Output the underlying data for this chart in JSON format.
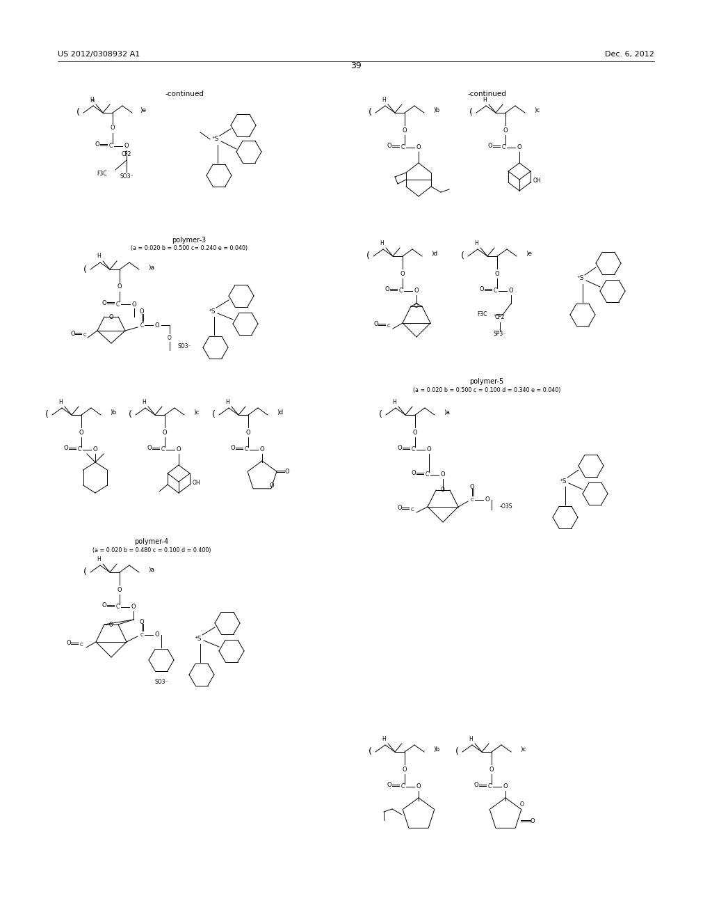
{
  "page_width": 10.24,
  "page_height": 13.2,
  "dpi": 100,
  "bg": "#ffffff",
  "header_left": "US 2012/0308932 A1",
  "header_right": "Dec. 6, 2012",
  "page_number": "39"
}
